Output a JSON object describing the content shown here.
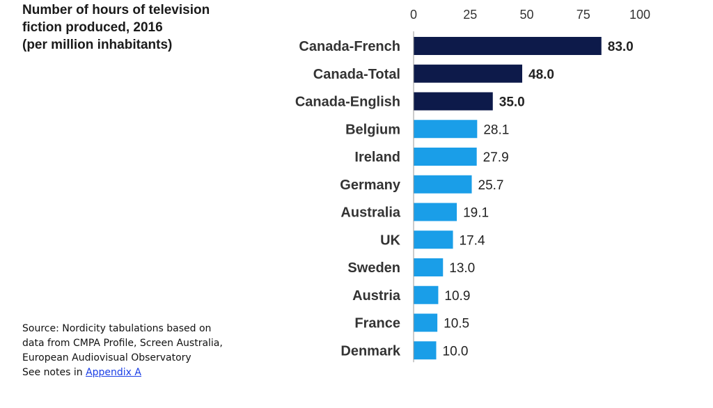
{
  "title_lines": [
    "Number of hours of television",
    "fiction produced, 2016",
    "(per million inhabitants)"
  ],
  "source": {
    "lines": [
      "Source: Nordicity tabulations based on",
      "data from CMPA Profile, Screen Australia,",
      "European Audiovisual Observatory"
    ],
    "notes_prefix": "See notes in ",
    "notes_link": "Appendix A"
  },
  "colors": {
    "canada_bar": "#0d1a4a",
    "other_bar": "#1a9ee8",
    "axis_line": "#999999"
  },
  "chart_data": {
    "type": "bar",
    "orientation": "horizontal",
    "title": "Number of hours of television fiction produced, 2016 (per million inhabitants)",
    "xlim": [
      0,
      100
    ],
    "xticks": [
      0,
      25,
      50,
      75,
      100
    ],
    "x_axis_position": "top",
    "grid": false,
    "categories": [
      "Canada-French",
      "Canada-Total",
      "Canada-English",
      "Belgium",
      "Ireland",
      "Germany",
      "Australia",
      "UK",
      "Sweden",
      "Austria",
      "France",
      "Denmark"
    ],
    "values": [
      83.0,
      48.0,
      35.0,
      28.1,
      27.9,
      25.7,
      19.1,
      17.4,
      13.0,
      10.9,
      10.5,
      10.0
    ],
    "highlighted": [
      "Canada-French",
      "Canada-Total",
      "Canada-English"
    ]
  }
}
